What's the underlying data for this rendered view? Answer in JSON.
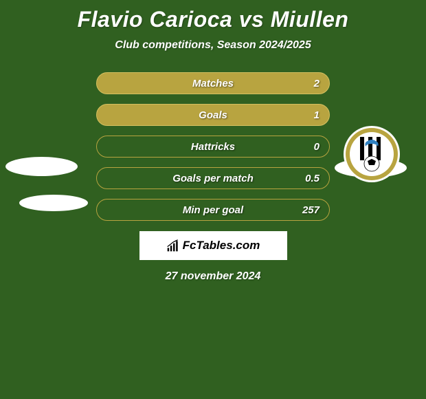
{
  "header": {
    "title": "Flavio Carioca vs Miullen",
    "subtitle": "Club competitions, Season 2024/2025"
  },
  "stats": [
    {
      "label": "Matches",
      "value": "2",
      "filled": true
    },
    {
      "label": "Goals",
      "value": "1",
      "filled": true
    },
    {
      "label": "Hattricks",
      "value": "0",
      "filled": false
    },
    {
      "label": "Goals per match",
      "value": "0.5",
      "filled": false
    },
    {
      "label": "Min per goal",
      "value": "257",
      "filled": false
    }
  ],
  "branding": {
    "text": "FcTables.com"
  },
  "date": "27 november 2024",
  "colors": {
    "background": "#306020",
    "bar_filled": "#b8a440",
    "bar_border": "#d4c060",
    "text": "#ffffff",
    "branding_bg": "#ffffff",
    "branding_text": "#000000"
  },
  "badge": {
    "ring_outer": "#b8a440",
    "ring_mid": "#ffffff",
    "stripe_dark": "#000000",
    "stripe_light": "#ffffff",
    "ball": "#ffffff"
  }
}
